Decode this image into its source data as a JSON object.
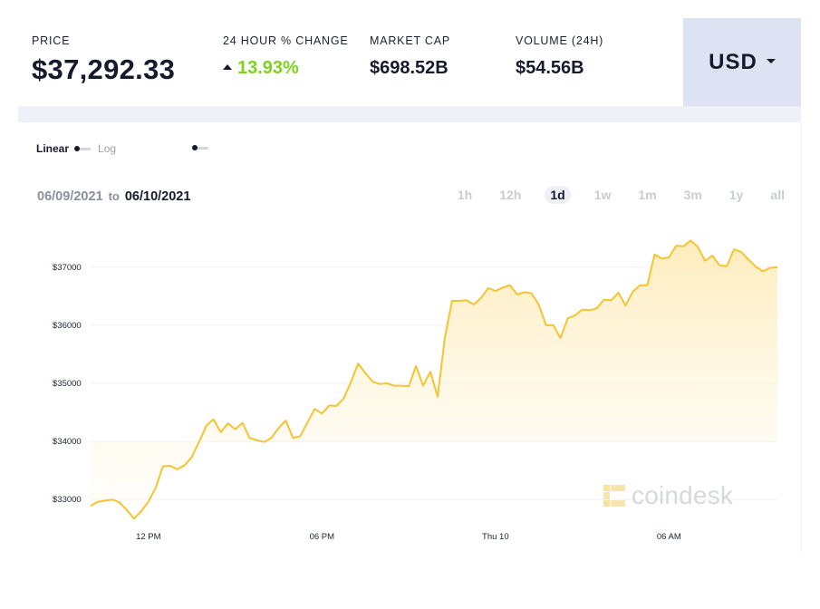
{
  "stats": {
    "price_label": "PRICE",
    "price_value": "$37,292.33",
    "change_label": "24 HOUR % CHANGE",
    "change_value": "13.93%",
    "change_direction": "up",
    "market_cap_label": "MARKET CAP",
    "market_cap_value": "$698.52B",
    "volume_label": "VOLUME (24H)",
    "volume_value": "$54.56B"
  },
  "currency": {
    "label": "USD",
    "icon": "caret-down-icon"
  },
  "controls": {
    "scale_linear": "Linear",
    "scale_log": "Log",
    "date_from": "06/09/2021",
    "date_sep": "to",
    "date_to": "06/10/2021",
    "periods": [
      "1h",
      "12h",
      "1d",
      "1w",
      "1m",
      "3m",
      "1y",
      "all"
    ],
    "active_period": "1d"
  },
  "watermark": "coindesk",
  "colors": {
    "accent_line": "#f5c430",
    "area_fill_top": "#fde9b0",
    "positive_change": "#7ed321",
    "currency_bg": "#dde3f3"
  },
  "chart_data": {
    "type": "area",
    "title": "",
    "xlabel": "",
    "ylabel": "",
    "x_start": "06/09 10:00",
    "x_step_minutes": 15,
    "x_ticks": [
      {
        "label": "12 PM",
        "index": 8
      },
      {
        "label": "06 PM",
        "index": 32
      },
      {
        "label": "Thu 10",
        "index": 56
      },
      {
        "label": "06 AM",
        "index": 80
      }
    ],
    "y_ticks": [
      {
        "label": "$33000",
        "value": 33000
      },
      {
        "label": "$34000",
        "value": 34000
      },
      {
        "label": "$35000",
        "value": 35000
      },
      {
        "label": "$36000",
        "value": 36000
      },
      {
        "label": "$37000",
        "value": 37000
      }
    ],
    "ylim": [
      32550,
      37700
    ],
    "grid": true,
    "series": [
      {
        "name": "",
        "values": [
          32890,
          32960,
          32980,
          33000,
          32950,
          32820,
          32670,
          32800,
          32960,
          33200,
          33570,
          33580,
          33520,
          33590,
          33730,
          33990,
          34270,
          34380,
          34160,
          34310,
          34210,
          34320,
          34060,
          34020,
          33990,
          34060,
          34230,
          34360,
          34060,
          34090,
          34330,
          34560,
          34480,
          34620,
          34610,
          34740,
          35020,
          35340,
          35180,
          35030,
          34990,
          35000,
          34960,
          34960,
          34950,
          35300,
          34960,
          35200,
          34770,
          35790,
          36420,
          36420,
          36430,
          36360,
          36470,
          36640,
          36590,
          36650,
          36690,
          36530,
          36570,
          36550,
          36350,
          36000,
          36000,
          35780,
          36120,
          36170,
          36270,
          36260,
          36290,
          36440,
          36430,
          36560,
          36340,
          36580,
          36690,
          36690,
          37220,
          37150,
          37170,
          37370,
          37360,
          37460,
          37350,
          37110,
          37200,
          37030,
          37020,
          37310,
          37260,
          37130,
          37010,
          36930,
          36990,
          37000
        ]
      }
    ]
  }
}
